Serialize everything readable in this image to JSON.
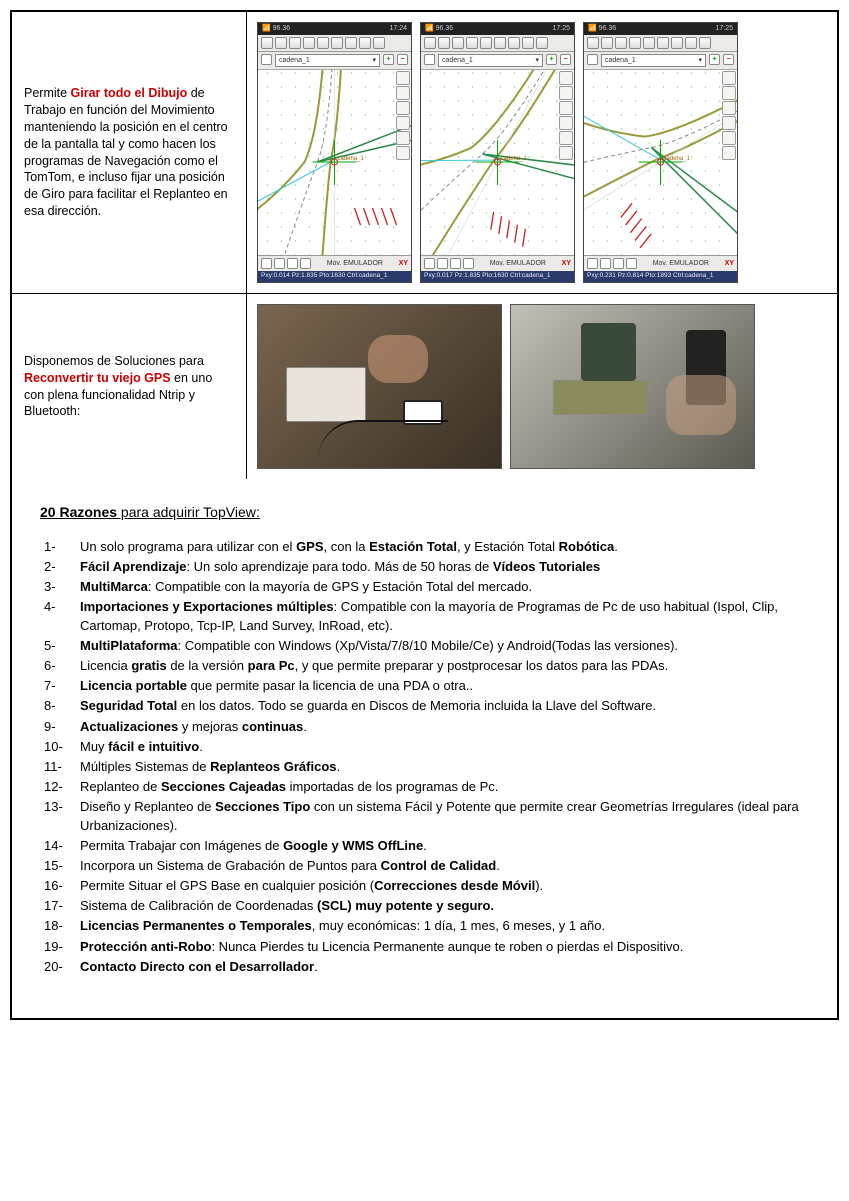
{
  "row1": {
    "text_pre": "Permite ",
    "text_bold_red": "Girar todo el Dibujo",
    "text_post": " de Trabajo en función del Movimiento manteniendo la posición en el centro de la pantalla tal y como hacen los programas de Navegación como el TomTom, e incluso fijar una posición de Giro para facilitar el Replanteo en esa dirección.",
    "screens": [
      {
        "time": "17:24",
        "signal": "96.36",
        "dropdown": "cadena_1",
        "bottom_label": "Mov. EMULADOR",
        "bottom_right": "XY",
        "coords": "Pxy:0.014 Pz:1.835 Pto:1630 Ctrl:cadena_1"
      },
      {
        "time": "17:25",
        "signal": "96.36",
        "dropdown": "cadena_1",
        "bottom_label": "Mov. EMULADOR",
        "bottom_right": "XY",
        "coords": "Pxy:0.017 Pz:1.835 Pto:1630 Ctrl:cadena_1"
      },
      {
        "time": "17:25",
        "signal": "96.36",
        "dropdown": "cadena_1",
        "bottom_label": "Mov. EMULADOR",
        "bottom_right": "XY",
        "coords": "Pxy:0.231 Pz:0.814 Pto:1893 Ctrl:cadena_1"
      }
    ]
  },
  "row2": {
    "text_pre": "Disponemos de Soluciones para ",
    "text_bold_red": "Reconvertir tu viejo GPS",
    "text_post": " en uno con plena funcionalidad Ntrip y Bluetooth:"
  },
  "razones": {
    "title_main": "20 Razones",
    "title_suffix": " para adquirir TopView:",
    "items": [
      [
        {
          "t": "Un solo programa para utilizar con el "
        },
        {
          "t": "GPS",
          "b": 1
        },
        {
          "t": ", con la "
        },
        {
          "t": "Estación Total",
          "b": 1
        },
        {
          "t": ", y Estación Total "
        },
        {
          "t": "Robótica",
          "b": 1
        },
        {
          "t": "."
        }
      ],
      [
        {
          "t": "Fácil Aprendizaje",
          "b": 1
        },
        {
          "t": ": Un solo aprendizaje para todo. Más de 50 horas de "
        },
        {
          "t": "Vídeos Tutoriales",
          "b": 1
        }
      ],
      [
        {
          "t": "MultiMarca",
          "b": 1
        },
        {
          "t": ": Compatible con la mayoría de GPS y Estación Total del mercado."
        }
      ],
      [
        {
          "t": "Importaciones y Exportaciones múltiples",
          "b": 1
        },
        {
          "t": ": Compatible con la mayoría de Programas de Pc de uso habitual (Ispol, Clip, Cartomap, Protopo, Tcp-IP, Land Survey, InRoad, etc)."
        }
      ],
      [
        {
          "t": "MultiPlataforma",
          "b": 1
        },
        {
          "t": ": Compatible con Windows (Xp/Vista/7/8/10  Mobile/Ce) y Android(Todas las versiones)."
        }
      ],
      [
        {
          "t": "Licencia "
        },
        {
          "t": "gratis",
          "b": 1
        },
        {
          "t": " de la versión "
        },
        {
          "t": "para Pc",
          "b": 1
        },
        {
          "t": ", y que permite preparar y postprocesar los datos para las PDAs."
        }
      ],
      [
        {
          "t": "Licencia portable",
          "b": 1
        },
        {
          "t": " que permite pasar la licencia de una PDA o otra.."
        }
      ],
      [
        {
          "t": "Seguridad Total",
          "b": 1
        },
        {
          "t": " en los datos. Todo se guarda en Discos de Memoria incluida la Llave del Software."
        }
      ],
      [
        {
          "t": "Actualizaciones",
          "b": 1
        },
        {
          "t": " y mejoras "
        },
        {
          "t": "continuas",
          "b": 1
        },
        {
          "t": "."
        }
      ],
      [
        {
          "t": "Muy "
        },
        {
          "t": "fácil e intuitivo",
          "b": 1
        },
        {
          "t": "."
        }
      ],
      [
        {
          "t": "Múltiples Sistemas de "
        },
        {
          "t": "Replanteos Gráficos",
          "b": 1
        },
        {
          "t": "."
        }
      ],
      [
        {
          "t": "Replanteo de "
        },
        {
          "t": "Secciones Cajeadas",
          "b": 1
        },
        {
          "t": " importadas de los programas de Pc."
        }
      ],
      [
        {
          "t": "Diseño y Replanteo de "
        },
        {
          "t": "Secciones Tipo",
          "b": 1
        },
        {
          "t": " con un sistema Fácil y Potente que permite crear Geometrías Irregulares (ideal para Urbanizaciones)."
        }
      ],
      [
        {
          "t": "Permita Trabajar con Imágenes de "
        },
        {
          "t": "Google y WMS OffLine",
          "b": 1
        },
        {
          "t": "."
        }
      ],
      [
        {
          "t": "Incorpora un Sistema de Grabación de Puntos para "
        },
        {
          "t": "Control de Calidad",
          "b": 1
        },
        {
          "t": "."
        }
      ],
      [
        {
          "t": "Permite Situar el GPS Base en cualquier posición ("
        },
        {
          "t": "Correcciones desde Móvil",
          "b": 1
        },
        {
          "t": ")."
        }
      ],
      [
        {
          "t": "Sistema de Calibración de Coordenadas "
        },
        {
          "t": "(SCL) muy potente y seguro.",
          "b": 1
        }
      ],
      [
        {
          "t": "Licencias Permanentes o Temporales",
          "b": 1
        },
        {
          "t": ", muy económicas: 1 día, 1 mes, 6 meses, y 1 año."
        }
      ],
      [
        {
          "t": "Protección anti-Robo",
          "b": 1
        },
        {
          "t": ": Nunca Pierdes tu Licencia Permanente aunque te roben o pierdas el Dispositivo."
        }
      ],
      [
        {
          "t": "Contacto Directo con el Desarrollador",
          "b": 1
        },
        {
          "t": "."
        }
      ]
    ]
  },
  "cad_lines": {
    "road_olive": "#9a9a3a",
    "road_dash_gray": "#888888",
    "guide_green": "#0a0",
    "curb_green": "#2a8a4a",
    "mark_red": "#cc2020",
    "cyan": "#3bc8d8",
    "dot_green": "#20a040"
  }
}
